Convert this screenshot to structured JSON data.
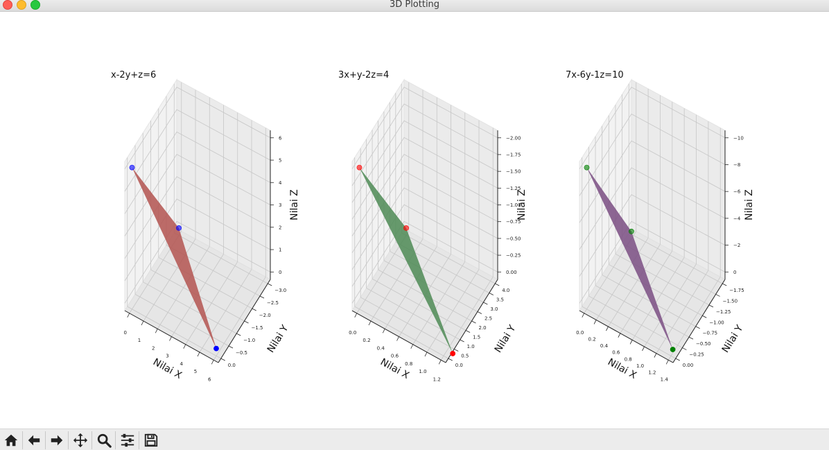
{
  "window": {
    "title": "3D Plotting"
  },
  "toolbar": {
    "buttons": [
      {
        "name": "home-icon"
      },
      {
        "name": "back-arrow-icon"
      },
      {
        "name": "forward-arrow-icon"
      },
      {
        "name": "pan-icon"
      },
      {
        "name": "zoom-icon"
      },
      {
        "name": "subplots-config-icon"
      },
      {
        "name": "save-icon"
      }
    ]
  },
  "chart_data": [
    {
      "type": "area",
      "title": "x-2y+z=6",
      "xlabel": "Nilai X",
      "ylabel": "Nilai Y",
      "zlabel": "Nilai Z",
      "x_ticks": [
        "0",
        "1",
        "2",
        "3",
        "4",
        "5",
        "6"
      ],
      "y_ticks": [
        "0.0",
        "−0.5",
        "−1.0",
        "−1.5",
        "−2.0",
        "−2.5",
        "−3.0"
      ],
      "z_ticks": [
        "0",
        "1",
        "2",
        "3",
        "4",
        "5",
        "6"
      ],
      "points": [
        {
          "x": 6,
          "y": 0,
          "z": 0
        },
        {
          "x": 0,
          "y": -3,
          "z": 0
        },
        {
          "x": 0,
          "y": 0,
          "z": 6
        }
      ],
      "face_color": "#b35450",
      "point_color": "#0000ff"
    },
    {
      "type": "area",
      "title": "3x+y-2z=4",
      "xlabel": "Nilai X",
      "ylabel": "Nilai Y",
      "zlabel": "Nilai Z",
      "x_ticks": [
        "0.0",
        "0.2",
        "0.4",
        "0.6",
        "0.8",
        "1.0",
        "1.2"
      ],
      "y_ticks": [
        "0.0",
        "0.5",
        "1.0",
        "1.5",
        "2.0",
        "2.5",
        "3.0",
        "3.5",
        "4.0"
      ],
      "z_ticks": [
        "0.00",
        "−0.25",
        "−0.50",
        "−0.75",
        "−1.00",
        "−1.25",
        "−1.50",
        "−1.75",
        "−2.00"
      ],
      "points": [
        {
          "x": 1.33,
          "y": 0,
          "z": 0
        },
        {
          "x": 0,
          "y": 4,
          "z": 0
        },
        {
          "x": 0,
          "y": 0,
          "z": -2
        }
      ],
      "face_color": "#4e8a55",
      "point_color": "#ff0000"
    },
    {
      "type": "area",
      "title": "7x-6y-1z=10",
      "xlabel": "Nilai X",
      "ylabel": "Nilai Y",
      "zlabel": "Nilai Z",
      "x_ticks": [
        "0.0",
        "0.2",
        "0.4",
        "0.6",
        "0.8",
        "1.0",
        "1.2",
        "1.4"
      ],
      "y_ticks": [
        "0.00",
        "−0.25",
        "−0.50",
        "−0.75",
        "−1.00",
        "−1.25",
        "−1.50",
        "−1.75"
      ],
      "z_ticks": [
        "0",
        "−2",
        "−4",
        "−6",
        "−8",
        "−10"
      ],
      "points": [
        {
          "x": 1.43,
          "y": 0,
          "z": 0
        },
        {
          "x": 0,
          "y": -1.67,
          "z": 0
        },
        {
          "x": 0,
          "y": 0,
          "z": -10
        }
      ],
      "face_color": "#7a4e82",
      "point_color": "#008000"
    }
  ]
}
